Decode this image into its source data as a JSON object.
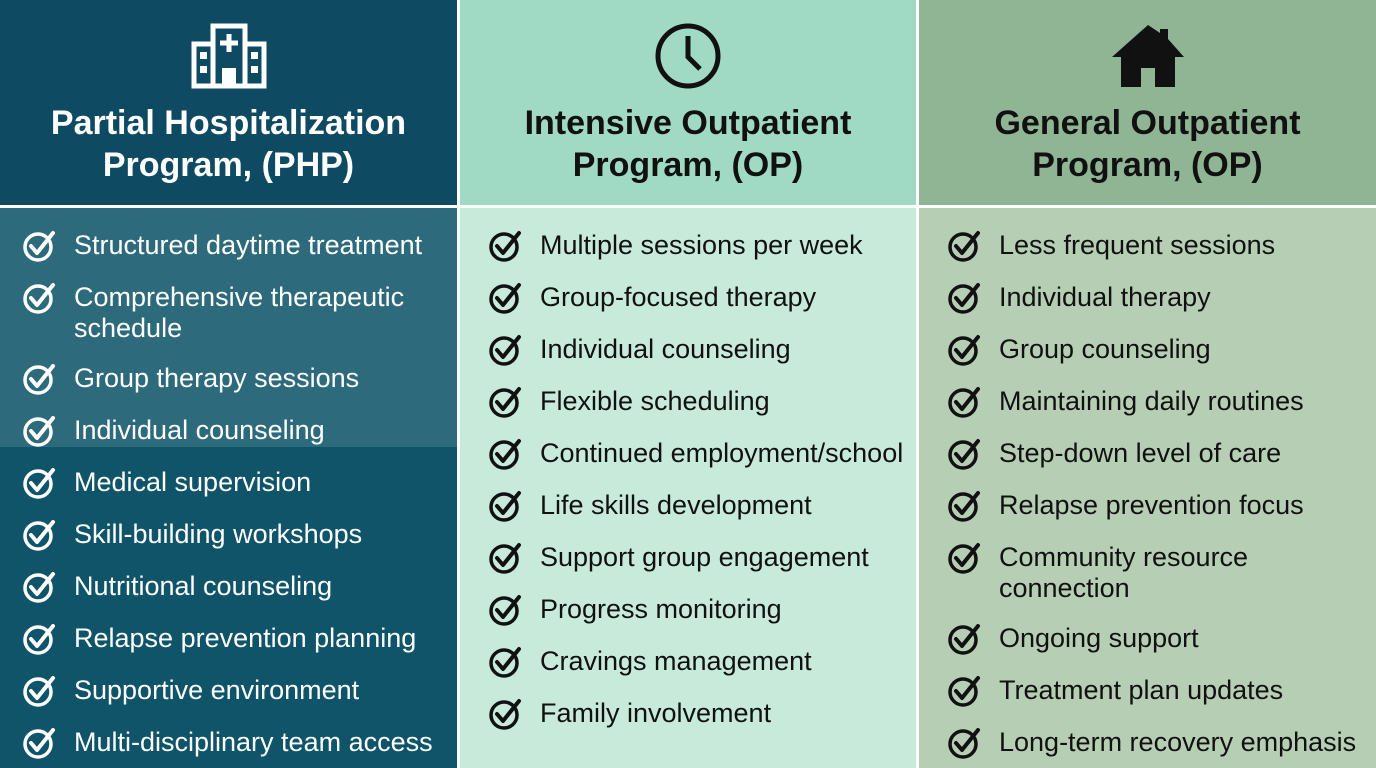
{
  "columns": [
    {
      "title": [
        "Partial Hospitalization",
        "Program, (PHP)"
      ],
      "items": [
        "Structured daytime treatment",
        "Comprehensive therapeutic schedule",
        "Group therapy sessions",
        "Individual counseling",
        "Medical supervision",
        "Skill-building workshops",
        "Nutritional counseling",
        "Relapse prevention planning",
        "Supportive environment",
        "Multi-disciplinary team access"
      ]
    },
    {
      "title": [
        "Intensive Outpatient",
        "Program, (OP)"
      ],
      "items": [
        "Multiple sessions per week",
        "Group-focused therapy",
        "Individual counseling",
        "Flexible scheduling",
        "Continued employment/school",
        "Life skills development",
        "Support group engagement",
        "Progress monitoring",
        "Cravings management",
        "Family involvement"
      ]
    },
    {
      "title": [
        "General Outpatient",
        "Program, (OP)"
      ],
      "items": [
        "Less frequent sessions",
        "Individual therapy",
        "Group counseling",
        "Maintaining daily routines",
        "Step-down level of care",
        "Relapse prevention focus",
        "Community resource connection",
        "Ongoing support",
        "Treatment plan updates",
        "Long-term recovery emphasis"
      ]
    }
  ]
}
